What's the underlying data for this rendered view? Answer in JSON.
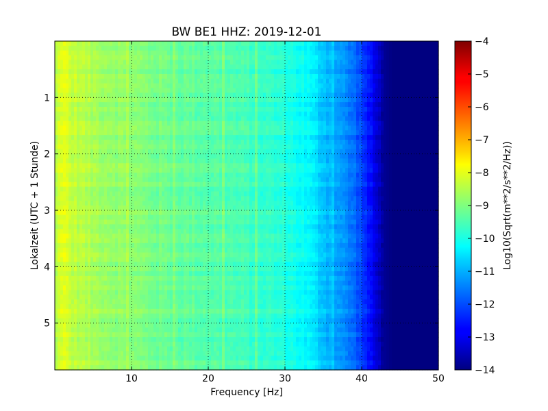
{
  "chart_data": {
    "type": "heatmap",
    "title": "BW BE1 HHZ: 2019-12-01",
    "xlabel": "Frequency [Hz]",
    "ylabel": "Lokalzeit (UTC + 1 Stunde)",
    "xlim": [
      0,
      50
    ],
    "ylim": [
      0,
      5.83
    ],
    "y_inverted": true,
    "x_ticks": [
      10,
      20,
      30,
      40,
      50
    ],
    "y_ticks": [
      1,
      2,
      3,
      4,
      5
    ],
    "grid": true,
    "colormap": "jet",
    "colorbar": {
      "label": "Log10(Sqrt(m**2/s**2/Hz))",
      "range": [
        -14,
        -4
      ],
      "ticks": [
        -14,
        -13,
        -12,
        -11,
        -10,
        -9,
        -8,
        -7,
        -6,
        -5,
        -4
      ]
    },
    "spectral_profile": {
      "frequency_hz": [
        0,
        1,
        2,
        5,
        10,
        15,
        20,
        25,
        30,
        33,
        35,
        37,
        39,
        40,
        41,
        42,
        43,
        44,
        50
      ],
      "log10_amplitude": [
        -8.6,
        -7.9,
        -8.3,
        -8.6,
        -8.9,
        -9.2,
        -9.35,
        -9.6,
        -9.9,
        -10.3,
        -10.8,
        -11.2,
        -11.7,
        -12.1,
        -12.6,
        -13.2,
        -13.8,
        -14,
        -14
      ]
    }
  }
}
